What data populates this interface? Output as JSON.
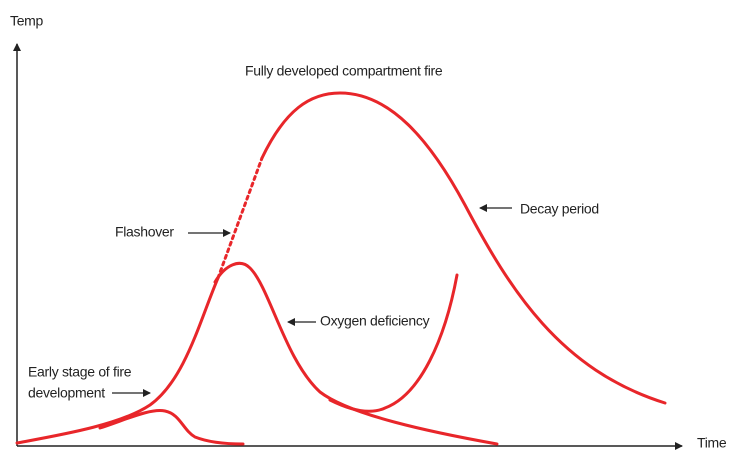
{
  "axes": {
    "y_label": "Temp",
    "x_label": "Time"
  },
  "labels": {
    "peak": "Fully developed compartment fire",
    "flashover": "Flashover",
    "decay": "Decay period",
    "oxygen": "Oxygen deficiency",
    "early": [
      "Early stage of fire",
      "development"
    ]
  }
}
